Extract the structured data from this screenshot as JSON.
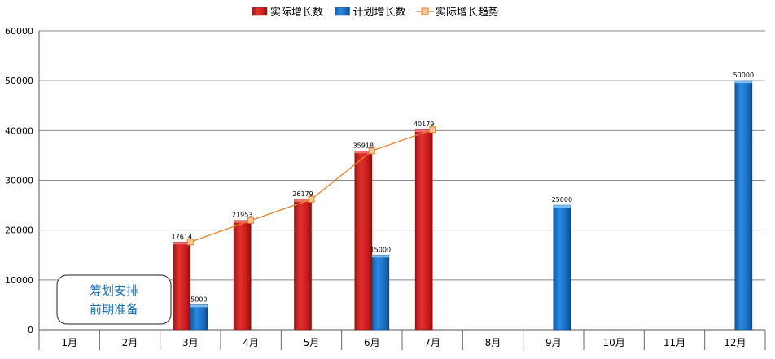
{
  "chart_data": {
    "type": "bar",
    "categories": [
      "1月",
      "2月",
      "3月",
      "4月",
      "5月",
      "6月",
      "7月",
      "8月",
      "9月",
      "10月",
      "11月",
      "12月"
    ],
    "series": [
      {
        "name": "实际增长数",
        "kind": "bar",
        "color": "#d42020",
        "values": [
          null,
          null,
          17614,
          21953,
          26179,
          35918,
          40179,
          null,
          null,
          null,
          null,
          null
        ]
      },
      {
        "name": "计划增长数",
        "kind": "bar",
        "color": "#1a73c8",
        "values": [
          null,
          null,
          5000,
          null,
          null,
          15000,
          null,
          null,
          25000,
          null,
          null,
          50000
        ]
      },
      {
        "name": "实际增长趋势",
        "kind": "line",
        "color": "#e8822a",
        "marker_fill": "#f6c89a",
        "values": [
          null,
          null,
          17614,
          21953,
          26179,
          35918,
          40179,
          null,
          null,
          null,
          null,
          null
        ]
      }
    ],
    "ylim": [
      0,
      60000
    ],
    "yticks": [
      "0",
      "10000",
      "20000",
      "30000",
      "40000",
      "50000",
      "60000"
    ],
    "grid": true,
    "legend_position": "top-center",
    "annotation": {
      "lines": [
        "筹划安排",
        "前期准备"
      ],
      "color": "#1e6fb4"
    }
  }
}
